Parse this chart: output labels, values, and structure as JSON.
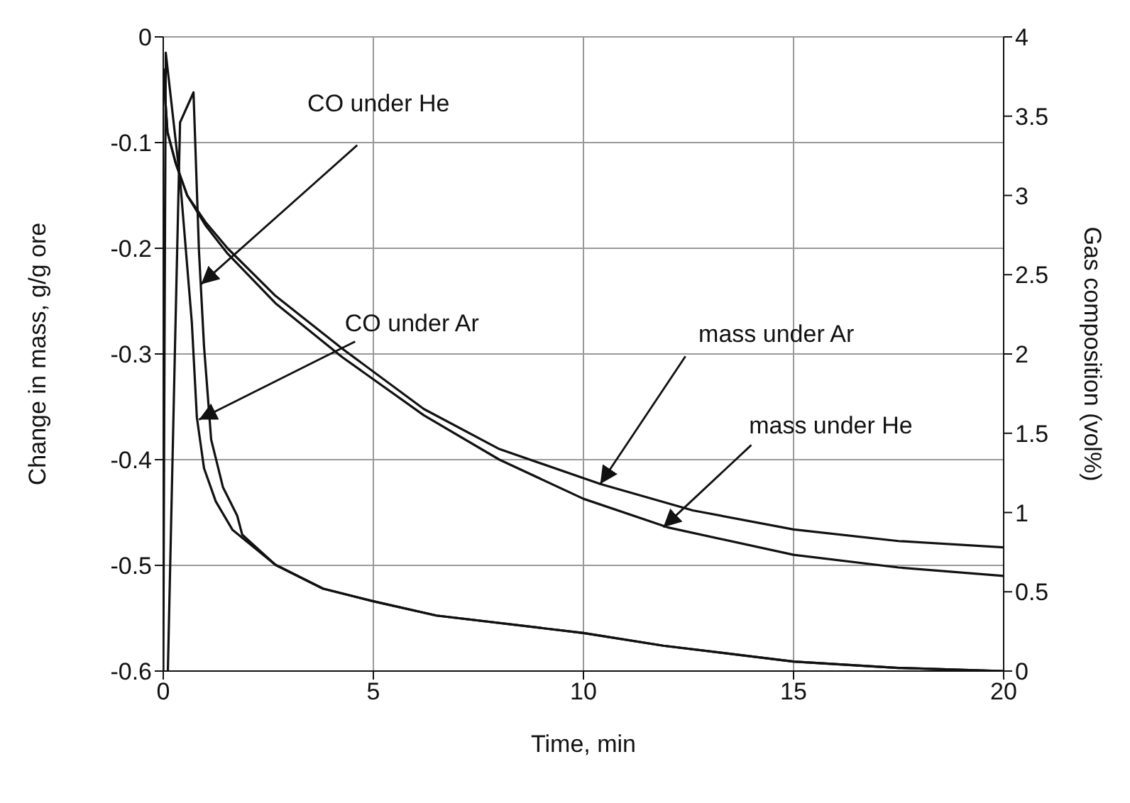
{
  "chart_data": {
    "type": "line",
    "xlabel": "Time, min",
    "ylabel": "Change in mass, g/g ore",
    "y2label": "Gas composition (vol%)",
    "xlim": [
      0,
      20
    ],
    "xticks": [
      0,
      5,
      10,
      15,
      20
    ],
    "ylim": [
      -0.6,
      0
    ],
    "yticks": [
      -0.6,
      -0.5,
      -0.4,
      -0.3,
      -0.2,
      -0.1,
      0
    ],
    "y2lim": [
      0,
      4
    ],
    "y2ticks": [
      0,
      0.5,
      1,
      1.5,
      2,
      2.5,
      3,
      3.5,
      4
    ],
    "grid": true,
    "marker": "none",
    "line_style": "solid",
    "series": [
      {
        "color": "#111111",
        "x": [
          0,
          0.1,
          0.3,
          0.57,
          1,
          1.53,
          2.67,
          4.26,
          6.2,
          8,
          10.4,
          12.6,
          15,
          17.5,
          20
        ],
        "values": [
          -0.03,
          -0.09,
          -0.12,
          -0.15,
          -0.175,
          -0.2,
          -0.245,
          -0.295,
          -0.352,
          -0.39,
          -0.423,
          -0.448,
          -0.466,
          -0.477,
          -0.483
        ]
      },
      {
        "color": "#111111",
        "x": [
          0,
          0.1,
          0.3,
          0.57,
          1,
          1.53,
          2.67,
          4.26,
          6.2,
          8,
          10,
          12,
          15,
          17.5,
          20
        ],
        "values": [
          -0.03,
          -0.09,
          -0.12,
          -0.15,
          -0.178,
          -0.205,
          -0.252,
          -0.303,
          -0.358,
          -0.4,
          -0.437,
          -0.464,
          -0.49,
          -0.502,
          -0.51
        ]
      },
      {
        "color": "#111111",
        "axis": "y2",
        "x": [
          0,
          0.03,
          0.06,
          0.4,
          0.68,
          0.8,
          0.97,
          1.25,
          1.65,
          2.67,
          3.8,
          5,
          6.5,
          10,
          11.9,
          15,
          17.5,
          20
        ],
        "values": [
          0,
          2.05,
          3.9,
          3.1,
          2.2,
          1.6,
          1.28,
          1.07,
          0.89,
          0.67,
          0.52,
          0.44,
          0.35,
          0.24,
          0.16,
          0.06,
          0.02,
          0
        ]
      },
      {
        "color": "#111111",
        "axis": "y2",
        "x": [
          0.11,
          0.28,
          0.4,
          0.72,
          0.85,
          0.97,
          1.14,
          1.42,
          1.76,
          1.88,
          2.67,
          3.8,
          5,
          6.5,
          10,
          11.9,
          15,
          17.5,
          20
        ],
        "values": [
          0,
          2.05,
          3.46,
          3.65,
          2.65,
          2.05,
          1.46,
          1.16,
          0.98,
          0.86,
          0.67,
          0.52,
          0.44,
          0.35,
          0.24,
          0.16,
          0.06,
          0.02,
          0
        ]
      }
    ],
    "annotations": [
      {
        "text": "CO under He",
        "x": 0.9,
        "y": -0.234
      },
      {
        "text": "CO under Ar",
        "x": 0.85,
        "y": -0.362
      },
      {
        "text": "mass under Ar",
        "x": 10.4,
        "y": -0.423
      },
      {
        "text": "mass under He",
        "x": 11.9,
        "y": -0.464
      }
    ]
  }
}
